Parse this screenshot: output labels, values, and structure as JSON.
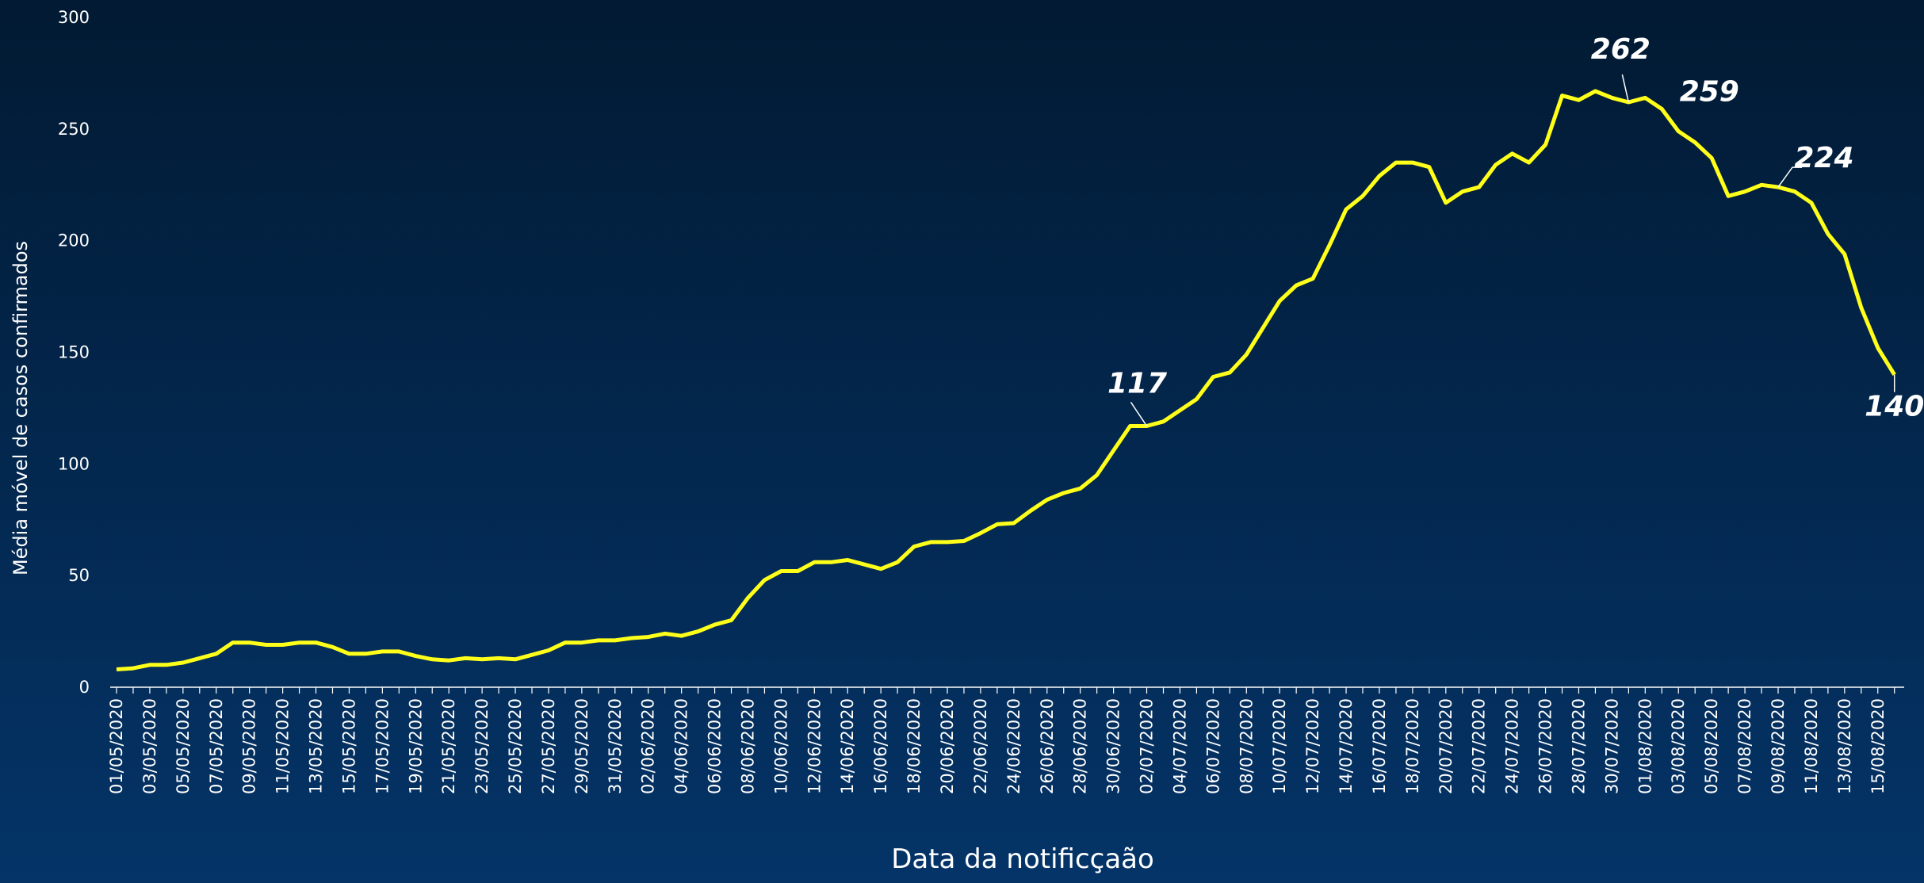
{
  "chart_data": {
    "type": "line",
    "ylabel": "Média móvel de casos  confirmados",
    "xlabel": "Data da notificçaão",
    "categories": [
      "01/05/2020",
      null,
      "03/05/2020",
      null,
      "05/05/2020",
      null,
      "07/05/2020",
      null,
      "09/05/2020",
      null,
      "11/05/2020",
      null,
      "13/05/2020",
      null,
      "15/05/2020",
      null,
      "17/05/2020",
      null,
      "19/05/2020",
      null,
      "21/05/2020",
      null,
      "23/05/2020",
      null,
      "25/05/2020",
      null,
      "27/05/2020",
      null,
      "29/05/2020",
      null,
      "31/05/2020",
      null,
      "02/06/2020",
      null,
      "04/06/2020",
      null,
      "06/06/2020",
      null,
      "08/06/2020",
      null,
      "10/06/2020",
      null,
      "12/06/2020",
      null,
      "14/06/2020",
      null,
      "16/06/2020",
      null,
      "18/06/2020",
      null,
      "20/06/2020",
      null,
      "22/06/2020",
      null,
      "24/06/2020",
      null,
      "26/06/2020",
      null,
      "28/06/2020",
      null,
      "30/06/2020",
      null,
      "02/07/2020",
      null,
      "04/07/2020",
      null,
      "06/07/2020",
      null,
      "08/07/2020",
      null,
      "10/07/2020",
      null,
      "12/07/2020",
      null,
      "14/07/2020",
      null,
      "16/07/2020",
      null,
      "18/07/2020",
      null,
      "20/07/2020",
      null,
      "22/07/2020",
      null,
      "24/07/2020",
      null,
      "26/07/2020",
      null,
      "28/07/2020",
      null,
      "30/07/2020",
      null,
      "01/08/2020",
      null,
      "03/08/2020",
      null,
      "05/08/2020",
      null,
      "07/08/2020",
      null,
      "09/08/2020",
      null,
      "11/08/2020",
      null,
      "13/08/2020",
      null,
      "15/08/2020",
      null
    ],
    "series": [
      {
        "color": "#ffff1a",
        "values": [
          8,
          8.5,
          10,
          10,
          11,
          13,
          15,
          20,
          20,
          19,
          19,
          20,
          20,
          18,
          15,
          15,
          16,
          16,
          14,
          12.5,
          12,
          13,
          12.5,
          13,
          12.5,
          14.5,
          16.5,
          20,
          20,
          21,
          21,
          22,
          22.5,
          24,
          23,
          25,
          28,
          30,
          40,
          48,
          52,
          52,
          56,
          56,
          57,
          55,
          53,
          56,
          63,
          65,
          65,
          65.5,
          69,
          73,
          73.5,
          79,
          84,
          87,
          89,
          95,
          106,
          117,
          117,
          119,
          124,
          129,
          139,
          141,
          149,
          161,
          173,
          180,
          183,
          198,
          214,
          220,
          229,
          235,
          235,
          233,
          217,
          222,
          224,
          234,
          239,
          235,
          243,
          265,
          263,
          267,
          264,
          262,
          264,
          259,
          249,
          244,
          237,
          220,
          222,
          225,
          224,
          222,
          217,
          203,
          194,
          170,
          152,
          140
        ],
        "value_labels": [
          null,
          null,
          null,
          null,
          null,
          null,
          null,
          null,
          null,
          null,
          null,
          null,
          null,
          null,
          null,
          null,
          null,
          null,
          null,
          null,
          null,
          null,
          null,
          null,
          null,
          null,
          null,
          null,
          null,
          null,
          null,
          null,
          null,
          null,
          null,
          null,
          null,
          null,
          null,
          null,
          null,
          null,
          null,
          null,
          null,
          null,
          null,
          null,
          null,
          null,
          null,
          null,
          null,
          null,
          null,
          null,
          null,
          null,
          null,
          null,
          null,
          null,
          "117",
          null,
          null,
          null,
          null,
          null,
          null,
          null,
          null,
          null,
          null,
          null,
          null,
          null,
          null,
          null,
          null,
          null,
          null,
          null,
          null,
          null,
          null,
          null,
          null,
          null,
          null,
          null,
          null,
          "262",
          null,
          "259",
          null,
          null,
          null,
          null,
          null,
          null,
          "224",
          null,
          null,
          null,
          null,
          null,
          null,
          "140"
        ]
      }
    ],
    "ylim": [
      0,
      300
    ],
    "yticks": [
      0,
      50,
      100,
      150,
      200,
      250,
      300
    ],
    "grid": false
  }
}
